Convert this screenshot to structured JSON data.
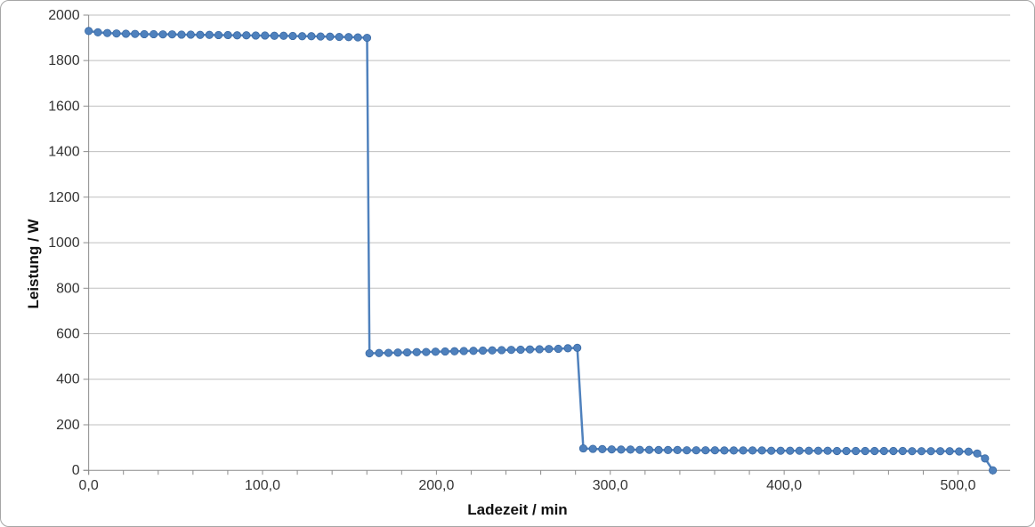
{
  "chart_data": {
    "type": "line",
    "title": "",
    "xlabel": "Ladezeit / min",
    "ylabel": "Leistung / W",
    "xlim": [
      0,
      530
    ],
    "ylim": [
      0,
      2000
    ],
    "grid": "horizontal",
    "legend": "none",
    "x_major_ticks": [
      0,
      100,
      200,
      300,
      400,
      500
    ],
    "x_tick_labels": [
      "0,0",
      "100,0",
      "200,0",
      "300,0",
      "400,0",
      "500,0"
    ],
    "x_minor_tick_step": 20,
    "x_minor_tick_max": 520,
    "y_ticks": [
      0,
      200,
      400,
      600,
      800,
      1000,
      1200,
      1400,
      1600,
      1800,
      2000
    ],
    "y_tick_labels": [
      "0",
      "200",
      "400",
      "600",
      "800",
      "1000",
      "1200",
      "1400",
      "1600",
      "1800",
      "2000"
    ],
    "series": [
      {
        "name": "Leistung",
        "color": "#4F81BD",
        "marker_edge_color": "#3A6AA5",
        "points": [
          [
            0,
            1930
          ],
          [
            5.3,
            1924
          ],
          [
            10.7,
            1921
          ],
          [
            16,
            1919
          ],
          [
            21.4,
            1918
          ],
          [
            26.7,
            1917
          ],
          [
            32,
            1916
          ],
          [
            37.4,
            1916
          ],
          [
            42.7,
            1915
          ],
          [
            48,
            1915
          ],
          [
            53.4,
            1914
          ],
          [
            58.7,
            1914
          ],
          [
            64.1,
            1913
          ],
          [
            69.4,
            1913
          ],
          [
            74.7,
            1912
          ],
          [
            80.1,
            1912
          ],
          [
            85.4,
            1911
          ],
          [
            90.7,
            1911
          ],
          [
            96.1,
            1910
          ],
          [
            101.4,
            1910
          ],
          [
            106.8,
            1909
          ],
          [
            112.1,
            1909
          ],
          [
            117.4,
            1908
          ],
          [
            122.8,
            1907
          ],
          [
            128.1,
            1907
          ],
          [
            133.4,
            1906
          ],
          [
            138.8,
            1905
          ],
          [
            144.1,
            1904
          ],
          [
            149.5,
            1903
          ],
          [
            154.8,
            1902
          ],
          [
            160.1,
            1900
          ],
          [
            161.5,
            514
          ],
          [
            167,
            515
          ],
          [
            172.4,
            516
          ],
          [
            177.8,
            517
          ],
          [
            183.2,
            518
          ],
          [
            188.7,
            519
          ],
          [
            194.1,
            520
          ],
          [
            199.5,
            521
          ],
          [
            205,
            522
          ],
          [
            210.4,
            523
          ],
          [
            215.8,
            524
          ],
          [
            221.3,
            525
          ],
          [
            226.7,
            526
          ],
          [
            232.1,
            527
          ],
          [
            237.5,
            528
          ],
          [
            243,
            529
          ],
          [
            248.4,
            530
          ],
          [
            253.8,
            531
          ],
          [
            259.3,
            532
          ],
          [
            264.7,
            533
          ],
          [
            270.1,
            534
          ],
          [
            275.6,
            536
          ],
          [
            281,
            538
          ],
          [
            284.5,
            96
          ],
          [
            290,
            94
          ],
          [
            295.4,
            93
          ],
          [
            300.8,
            92
          ],
          [
            306.2,
            91
          ],
          [
            311.6,
            91
          ],
          [
            317,
            90
          ],
          [
            322.4,
            90
          ],
          [
            327.8,
            89
          ],
          [
            333.2,
            89
          ],
          [
            338.6,
            89
          ],
          [
            344,
            88
          ],
          [
            349.4,
            88
          ],
          [
            354.8,
            88
          ],
          [
            360.2,
            88
          ],
          [
            365.6,
            87
          ],
          [
            371,
            87
          ],
          [
            376.4,
            87
          ],
          [
            381.8,
            87
          ],
          [
            387.2,
            87
          ],
          [
            392.6,
            86
          ],
          [
            398,
            86
          ],
          [
            403.4,
            86
          ],
          [
            408.8,
            86
          ],
          [
            414.2,
            86
          ],
          [
            419.6,
            86
          ],
          [
            425,
            86
          ],
          [
            430.4,
            85
          ],
          [
            435.8,
            85
          ],
          [
            441.2,
            85
          ],
          [
            446.6,
            85
          ],
          [
            452,
            85
          ],
          [
            457.4,
            85
          ],
          [
            462.8,
            85
          ],
          [
            468.2,
            85
          ],
          [
            473.6,
            84
          ],
          [
            479,
            84
          ],
          [
            484.4,
            84
          ],
          [
            489.8,
            84
          ],
          [
            495.2,
            84
          ],
          [
            500.6,
            83
          ],
          [
            506,
            82
          ],
          [
            511,
            74
          ],
          [
            515.5,
            52
          ],
          [
            520,
            0
          ]
        ]
      }
    ]
  },
  "colors": {
    "background": "#ffffff",
    "chart_border": "#a6a6a6",
    "gridline": "#bfbfbf",
    "axis_line": "#8c8c8c",
    "tick_text": "#333333",
    "title_text": "#111111",
    "series": "#4F81BD"
  }
}
